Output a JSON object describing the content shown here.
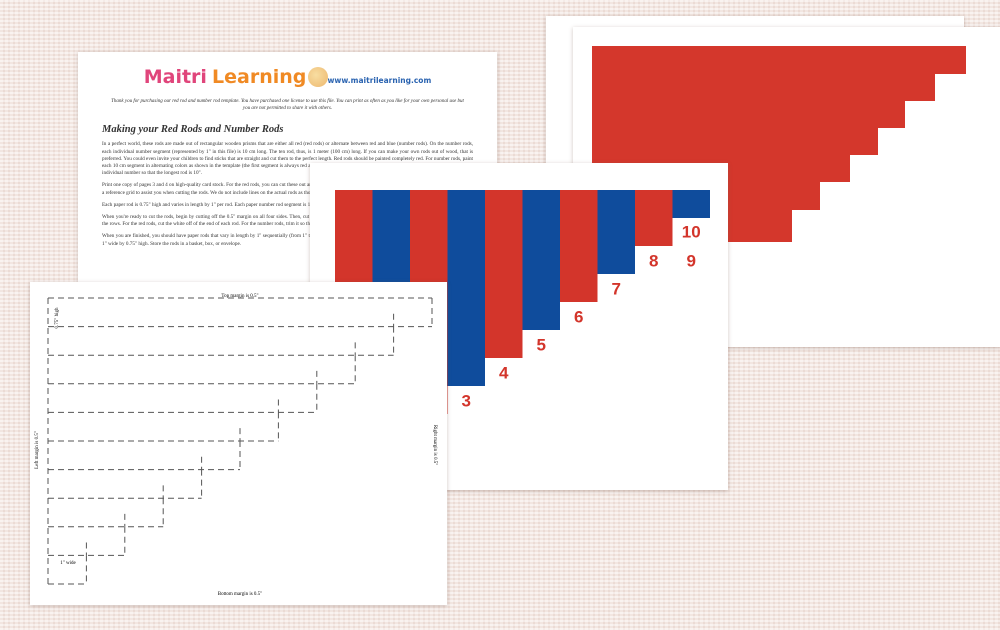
{
  "logo": {
    "brand_first": "Maitri",
    "brand_second": "Learning",
    "url": "www.maitrilearning.com"
  },
  "letter": {
    "intro": "Thank you for purchasing our red rod and number rod template. You have purchased one license to use this file. You can print as often as you like for your own personal use but you are not permitted to share it with others.",
    "heading": "Making your Red Rods and Number Rods",
    "paragraphs": [
      "In a perfect world, these rods are made out of rectangular wooden prisms that are either all red (red rods) or alternate between red and blue (number rods). On the number rods, each individual number segment (represented by 1\" in this file) is 10 cm long. The ten rod, thus, is 1 meter (100 cm) long. If you can make your own rods out of wood, that is preferred. You could even invite your children to find sticks that are straight and cut them to the perfect length. Red rods should be painted completely red. For number rods, paint each 10 cm segment in alternating colors as shown in the template (the first segment is always red and is always on the left). To make these on paper, we reduce the size to 1\" per individual number so that the longest rod is 10\".",
      "Print one copy of pages 3 and 4 on high-quality card stock. For the red rods, you can cut these out and use them as they are. If the material has weight to it, all the better. Page 2 is a reference grid to assist you when cutting the rods. We do not include lines on the actual rods as those create a visual distraction.",
      "Each paper rod is 0.75\" high and varies in length by 1\" per rod. Each paper number rod segment is 1\" long. There is a 0.5\" margin around all sides of the page.",
      "When you're ready to cut the rods, begin by cutting off the 0.5\" margin on all four sides. Then, cut along the lines between each of the rows. Use this 0.75\" cut to separate all of the rows. For the red rods, cut the white off of the end of each rod. For the number rods, trim it so that 1\" widths leaving no color showing on the number's borders.",
      "When you are finished, you should have paper rods that vary in length by 1\" sequentially (from 1\" to 10\"), each divided into segments by number. Each number card is just under 1\" wide by 0.75\" high. Store the rods in a basket, box, or envelope."
    ]
  },
  "number_rods": {
    "labels": [
      "3",
      "4",
      "5",
      "6",
      "7",
      "8",
      "9",
      "10"
    ]
  },
  "template": {
    "top": "Top margin is 0.5\"",
    "left": "Left margin is 0.5\"",
    "right": "Right margin is 0.5\"",
    "bottom": "Bottom margin is 0.5\"",
    "rod_height": "0.75\" high",
    "segment_width": "1\" wide"
  }
}
